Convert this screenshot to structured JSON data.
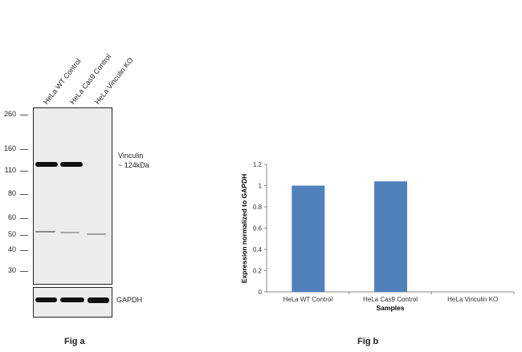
{
  "fig_a": {
    "label": "Fig a",
    "lanes": [
      "HeLa WT Control",
      "HeLa Cas9 Control",
      "HeLa Vinculin KO"
    ],
    "markers": [
      "260",
      "160",
      "110",
      "80",
      "60",
      "50",
      "40",
      "30"
    ],
    "band_label_line1": "Vinculin",
    "band_label_line2": "~ 124kDa",
    "loading_control": "GAPDH"
  },
  "fig_b": {
    "label": "Fig b"
  },
  "chart_data": {
    "type": "bar",
    "categories": [
      "HeLa WT Control",
      "HeLa Cas9 Control",
      "HeLa Vinculin KO"
    ],
    "values": [
      1.0,
      1.04,
      0
    ],
    "xlabel": "Samples",
    "ylabel": "Expression  normalized to GAPDH",
    "ylim": [
      0,
      1.2
    ],
    "yticks": [
      "0",
      "0.2",
      "0.4",
      "0.6",
      "0.8",
      "1",
      "1.2"
    ],
    "grid": false,
    "bar_color": "#4f81bd"
  }
}
